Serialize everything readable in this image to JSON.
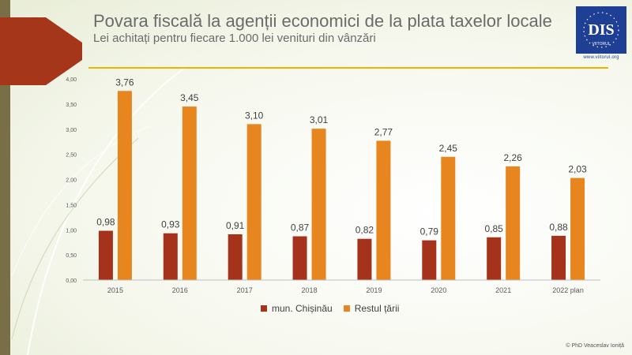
{
  "slide": {
    "title": "Povara fiscală la agenții economici de la plata taxelor locale",
    "subtitle": "Lei achitați pentru fiecare 1.000 lei venituri din vânzări",
    "logo_text": "DIS",
    "logo_subtext": "VIITORUL",
    "logo_url": "www.viitorul.org",
    "credit": "© PhD Veaceslav Ioniță",
    "colors": {
      "accent_line": "#f0b400",
      "stripe": "#7a6e47",
      "arrow": "#a5361a",
      "logo_bg": "#1e3f94"
    }
  },
  "chart_data": {
    "type": "bar",
    "categories": [
      "2015",
      "2016",
      "2017",
      "2018",
      "2019",
      "2020",
      "2021",
      "2022 plan"
    ],
    "series": [
      {
        "name": "mun. Chișinău",
        "color": "#a5321a",
        "values": [
          0.98,
          0.93,
          0.91,
          0.87,
          0.82,
          0.79,
          0.85,
          0.88
        ],
        "labels": [
          "0,98",
          "0,93",
          "0,91",
          "0,87",
          "0,82",
          "0,79",
          "0,85",
          "0,88"
        ]
      },
      {
        "name": "Restul țării",
        "color": "#e7861e",
        "values": [
          3.76,
          3.45,
          3.1,
          3.01,
          2.77,
          2.45,
          2.26,
          2.03
        ],
        "labels": [
          "3,76",
          "3,45",
          "3,10",
          "3,01",
          "2,77",
          "2,45",
          "2,26",
          "2,03"
        ]
      }
    ],
    "yticks": [
      0,
      0.5,
      1,
      1.5,
      2,
      2.5,
      3,
      3.5,
      4
    ],
    "ytick_labels": [
      "0,00",
      "0,50",
      "1,00",
      "1,50",
      "2,00",
      "2,50",
      "3,00",
      "3,50",
      "4,00"
    ],
    "ylim": [
      0,
      4
    ],
    "grid": false,
    "legend_position": "bottom"
  }
}
